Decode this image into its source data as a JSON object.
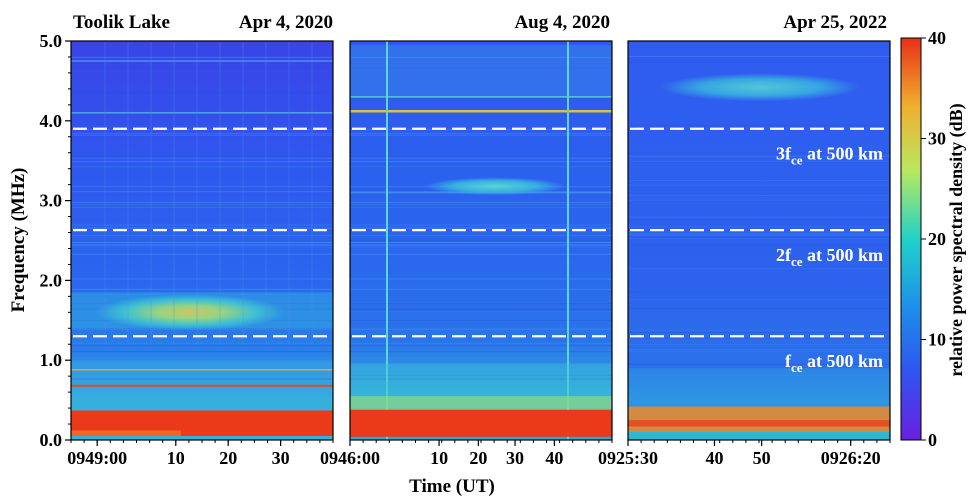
{
  "chart_data": {
    "type": "heatmap",
    "site_label": "Toolik Lake",
    "ylabel": "Frequency (MHz)",
    "xlabel": "Time (UT)",
    "ylim": [
      0,
      5
    ],
    "y_ticks": [
      "0.0",
      "1.0",
      "2.0",
      "3.0",
      "4.0",
      "5.0"
    ],
    "colorbar": {
      "label": "relative power spectral density (dB)",
      "range": [
        0,
        40
      ],
      "ticks": [
        "0",
        "10",
        "20",
        "30",
        "40"
      ],
      "colors": [
        "#6a1fe0",
        "#2f55f0",
        "#1f8fea",
        "#20d2c8",
        "#b8e860",
        "#f0b030",
        "#e83018"
      ]
    },
    "panels": [
      {
        "date": "Apr 4, 2020",
        "x_ticks": [
          {
            "label": "0949:00",
            "frac": 0.1
          },
          {
            "label": "10",
            "frac": 0.4
          },
          {
            "label": "20",
            "frac": 0.6
          },
          {
            "label": "30",
            "frac": 0.8
          }
        ],
        "guide_lines_mhz": [
          3.9,
          2.63,
          1.3
        ],
        "features": [
          {
            "description": "broadband emission band",
            "freq_mhz": [
              1.4,
              1.8
            ],
            "level_db": 22
          },
          {
            "description": "strong low-frequency interference",
            "freq_mhz": [
              0.05,
              0.35
            ],
            "level_db": 38
          }
        ]
      },
      {
        "date": "Aug 4, 2020",
        "x_ticks": [
          {
            "label": "0946:00",
            "frac": 0.0
          },
          {
            "label": "10",
            "frac": 0.34
          },
          {
            "label": "20",
            "frac": 0.49
          },
          {
            "label": "30",
            "frac": 0.63
          },
          {
            "label": "40",
            "frac": 0.78
          }
        ],
        "guide_lines_mhz": [
          3.9,
          2.63,
          1.3
        ],
        "features": [
          {
            "description": "narrow emission feature",
            "freq_mhz": [
              3.1,
              3.25
            ],
            "level_db": 18
          },
          {
            "description": "strong low-frequency interference",
            "freq_mhz": [
              0.05,
              0.38
            ],
            "level_db": 38
          }
        ]
      },
      {
        "date": "Apr 25, 2022",
        "x_ticks": [
          {
            "label": "0925:30",
            "frac": 0.0
          },
          {
            "label": "40",
            "frac": 0.33
          },
          {
            "label": "50",
            "frac": 0.51
          },
          {
            "label": "0926:20",
            "frac": 0.85
          }
        ],
        "guide_lines_mhz": [
          3.9,
          2.63,
          1.3
        ],
        "annotations": [
          {
            "base": "3f",
            "sub": "ce",
            "rest": " at 500 km",
            "freq_mhz": 3.6
          },
          {
            "base": "2f",
            "sub": "ce",
            "rest": " at 500 km",
            "freq_mhz": 2.33
          },
          {
            "base": "f",
            "sub": "ce",
            "rest": " at 500 km",
            "freq_mhz": 1.0
          }
        ],
        "features": [
          {
            "description": "diffuse emission patch",
            "freq_mhz": [
              4.3,
              4.6
            ],
            "level_db": 15
          },
          {
            "description": "strong low-frequency interference",
            "freq_mhz": [
              0.1,
              0.4
            ],
            "level_db": 32
          }
        ]
      }
    ]
  }
}
